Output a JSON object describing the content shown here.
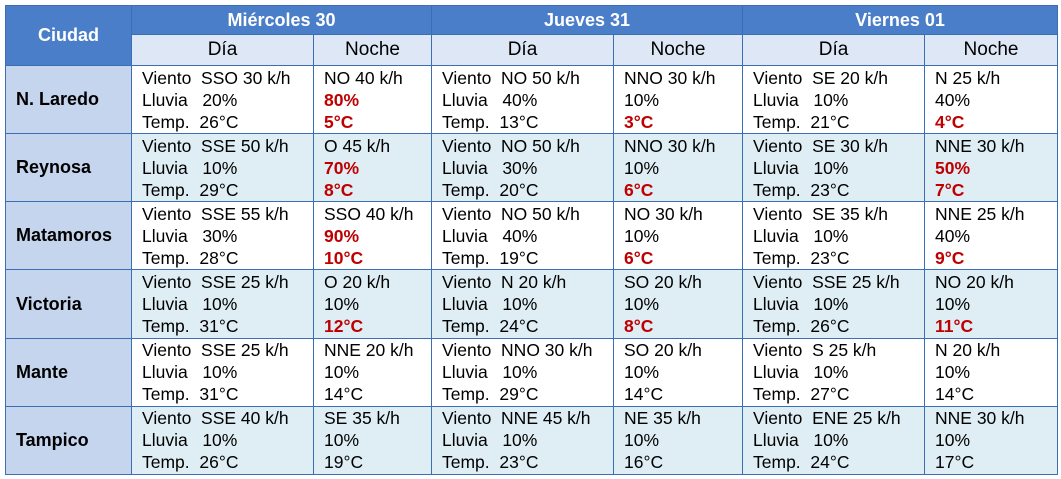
{
  "header": {
    "city_label": "Ciudad",
    "days": [
      "Miércoles 30",
      "Jueves 31",
      "Viernes 01"
    ],
    "day_label": "Día",
    "night_label": "Noche"
  },
  "labels": {
    "wind": "Viento",
    "rain": "Lluvia",
    "temp": "Temp."
  },
  "colors": {
    "header_bg": "#4a7ec8",
    "city_bg": "#c6d5ee",
    "alt_row_bg": "#deeef4",
    "highlight": "#c00000"
  },
  "rows": [
    {
      "city": "N. Laredo",
      "days": [
        {
          "day": {
            "wind": "SSO 30 k/h",
            "rain": "20%",
            "temp": "26°C"
          },
          "night": {
            "wind": "NO 40 k/h",
            "rain": "80%",
            "temp": "5°C",
            "rain_hl": true,
            "temp_hl": true
          }
        },
        {
          "day": {
            "wind": "NO 50 k/h",
            "rain": "40%",
            "temp": "13°C"
          },
          "night": {
            "wind": "NNO 30 k/h",
            "rain": "10%",
            "temp": "3°C",
            "temp_hl": true
          }
        },
        {
          "day": {
            "wind": "SE 20 k/h",
            "rain": "10%",
            "temp": "21°C"
          },
          "night": {
            "wind": "N 25 k/h",
            "rain": "40%",
            "temp": "4°C",
            "temp_hl": true
          }
        }
      ]
    },
    {
      "city": "Reynosa",
      "days": [
        {
          "day": {
            "wind": "SSE 50 k/h",
            "rain": "10%",
            "temp": "29°C"
          },
          "night": {
            "wind": "O 45 k/h",
            "rain": "70%",
            "temp": "8°C",
            "rain_hl": true,
            "temp_hl": true
          }
        },
        {
          "day": {
            "wind": "NO 50 k/h",
            "rain": "30%",
            "temp": "20°C"
          },
          "night": {
            "wind": "NNO 30 k/h",
            "rain": "10%",
            "temp": "6°C",
            "temp_hl": true
          }
        },
        {
          "day": {
            "wind": "SE 30 k/h",
            "rain": "10%",
            "temp": "23°C"
          },
          "night": {
            "wind": "NNE 30 k/h",
            "rain": "50%",
            "temp": "7°C",
            "rain_hl": true,
            "temp_hl": true
          }
        }
      ]
    },
    {
      "city": "Matamoros",
      "days": [
        {
          "day": {
            "wind": "SSE 55 k/h",
            "rain": "30%",
            "temp": "28°C"
          },
          "night": {
            "wind": "SSO 40 k/h",
            "rain": "90%",
            "temp": "10°C",
            "rain_hl": true,
            "temp_hl": true
          }
        },
        {
          "day": {
            "wind": "NO 50 k/h",
            "rain": "40%",
            "temp": "19°C"
          },
          "night": {
            "wind": "NO 30 k/h",
            "rain": "10%",
            "temp": "6°C",
            "temp_hl": true
          }
        },
        {
          "day": {
            "wind": "SE 35 k/h",
            "rain": "10%",
            "temp": "23°C"
          },
          "night": {
            "wind": "NNE 25 k/h",
            "rain": "40%",
            "temp": "9°C",
            "temp_hl": true
          }
        }
      ]
    },
    {
      "city": "Victoria",
      "days": [
        {
          "day": {
            "wind": "SSE 25 k/h",
            "rain": "10%",
            "temp": "31°C"
          },
          "night": {
            "wind": "O 20 k/h",
            "rain": "10%",
            "temp": "12°C",
            "temp_hl": true
          }
        },
        {
          "day": {
            "wind": "N 20 k/h",
            "rain": "10%",
            "temp": "24°C"
          },
          "night": {
            "wind": "SO 20 k/h",
            "rain": "10%",
            "temp": "8°C",
            "temp_hl": true
          }
        },
        {
          "day": {
            "wind": "SSE 25 k/h",
            "rain": "10%",
            "temp": "26°C"
          },
          "night": {
            "wind": "NO 20 k/h",
            "rain": "10%",
            "temp": "11°C",
            "temp_hl": true
          }
        }
      ]
    },
    {
      "city": "Mante",
      "days": [
        {
          "day": {
            "wind": "SSE 25 k/h",
            "rain": "10%",
            "temp": "31°C"
          },
          "night": {
            "wind": "NNE 20 k/h",
            "rain": "10%",
            "temp": "14°C"
          }
        },
        {
          "day": {
            "wind": "NNO 30 k/h",
            "rain": "10%",
            "temp": "29°C"
          },
          "night": {
            "wind": "SO 20 k/h",
            "rain": "10%",
            "temp": "14°C"
          }
        },
        {
          "day": {
            "wind": "S 25 k/h",
            "rain": "10%",
            "temp": "27°C"
          },
          "night": {
            "wind": "N 20 k/h",
            "rain": "10%",
            "temp": "14°C"
          }
        }
      ]
    },
    {
      "city": "Tampico",
      "days": [
        {
          "day": {
            "wind": "SSE 40 k/h",
            "rain": "10%",
            "temp": "26°C"
          },
          "night": {
            "wind": "SE 35 k/h",
            "rain": "10%",
            "temp": "19°C"
          }
        },
        {
          "day": {
            "wind": "NNE 45 k/h",
            "rain": "10%",
            "temp": "23°C"
          },
          "night": {
            "wind": "NE 35 k/h",
            "rain": "10%",
            "temp": "16°C"
          }
        },
        {
          "day": {
            "wind": "ENE 25 k/h",
            "rain": "10%",
            "temp": "24°C"
          },
          "night": {
            "wind": "NNE 30 k/h",
            "rain": "10%",
            "temp": "17°C"
          }
        }
      ]
    }
  ]
}
